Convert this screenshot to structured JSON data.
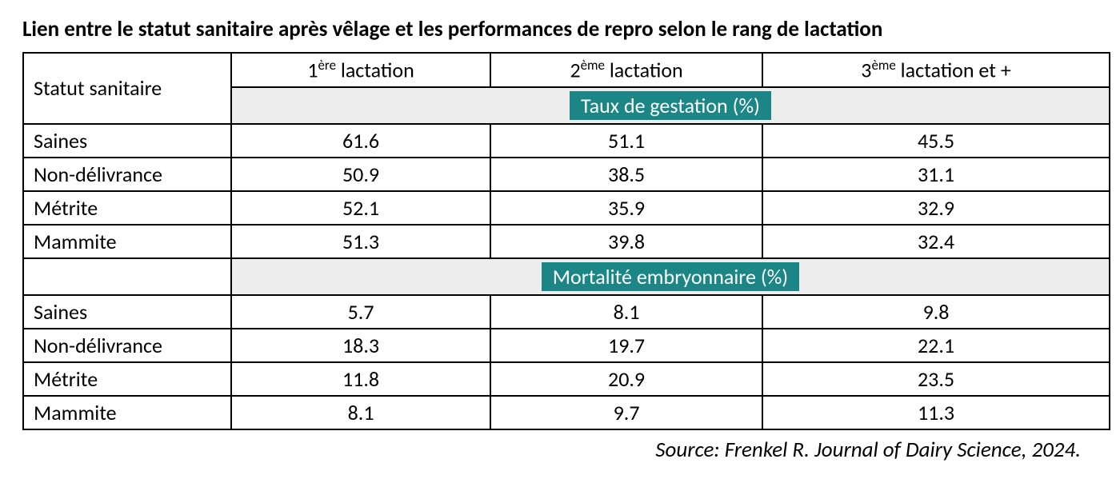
{
  "title": "Lien entre le statut sanitaire après vêlage et les performances de repro selon le rang de lactation",
  "rowHeaderLabel": "Statut sanitaire",
  "columns": [
    {
      "prefix": "1",
      "sup": "ère",
      "suffix": " lactation"
    },
    {
      "prefix": "2",
      "sup": "ème",
      "suffix": " lactation"
    },
    {
      "prefix": "3",
      "sup": "ème",
      "suffix": " lactation et +"
    }
  ],
  "sections": [
    {
      "label": "Taux de gestation (%)",
      "rows": [
        {
          "label": "Saines",
          "values": [
            "61.6",
            "51.1",
            "45.5"
          ]
        },
        {
          "label": "Non-délivrance",
          "values": [
            "50.9",
            "38.5",
            "31.1"
          ]
        },
        {
          "label": "Métrite",
          "values": [
            "52.1",
            "35.9",
            "32.9"
          ]
        },
        {
          "label": "Mammite",
          "values": [
            "51.3",
            "39.8",
            "32.4"
          ]
        }
      ]
    },
    {
      "label": "Mortalité embryonnaire (%)",
      "rows": [
        {
          "label": "Saines",
          "values": [
            "5.7",
            "8.1",
            "9.8"
          ]
        },
        {
          "label": "Non-délivrance",
          "values": [
            "18.3",
            "19.7",
            "22.1"
          ]
        },
        {
          "label": "Métrite",
          "values": [
            "11.8",
            "20.9",
            "23.5"
          ]
        },
        {
          "label": "Mammite",
          "values": [
            "8.1",
            "9.7",
            "11.3"
          ]
        }
      ]
    }
  ],
  "source": "Source: Frenkel R. Journal of Dairy Science, 2024.",
  "colors": {
    "badgeBg": "#1c8585",
    "badgeText": "#ffffff",
    "sectionBg": "#ededed",
    "border": "#000000",
    "text": "#000000",
    "pageBg": "#ffffff"
  },
  "fontSizes": {
    "title": 27,
    "cell": 26,
    "source": 27
  },
  "tableWidthPx": 1360,
  "rowHeaderWidthPx": 260
}
